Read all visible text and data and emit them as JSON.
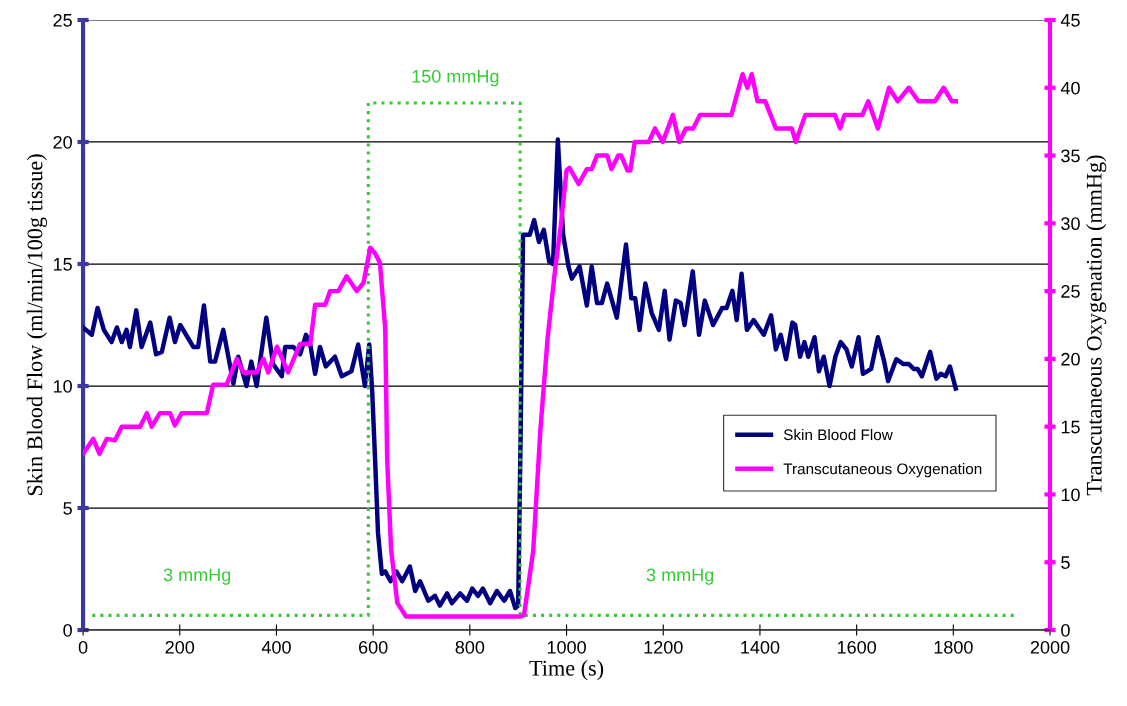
{
  "chart_data": {
    "type": "line",
    "xlabel": "Time (s)",
    "ylabel": "Skin Blood Flow (ml/min/100g tissue)",
    "y2label": "Transcutaneous Oxygenation (mmHg)",
    "xlim": [
      0,
      2000
    ],
    "xticks": [
      0,
      200,
      400,
      600,
      800,
      1000,
      1200,
      1400,
      1600,
      1800,
      2000
    ],
    "ylim": [
      0,
      25
    ],
    "yticks": [
      0,
      5,
      10,
      15,
      20,
      25
    ],
    "y2lim": [
      0,
      45
    ],
    "y2ticks": [
      0,
      5,
      10,
      15,
      20,
      25,
      30,
      35,
      40,
      45
    ],
    "grid": "y",
    "legend": "center right",
    "annotations": [
      {
        "text": "150 mmHg",
        "x": 770,
        "y": 21.6
      },
      {
        "text": "3 mmHg",
        "x": 236,
        "y": 0.6
      },
      {
        "text": "3 mmHg",
        "x": 1235,
        "y": 0.6
      }
    ],
    "series": [
      {
        "name": "Skin Blood Flow",
        "color": "#000080",
        "axis": "y",
        "line_style": "solid",
        "x": [
          0,
          18,
          30,
          43,
          59,
          70,
          80,
          90,
          97,
          110,
          121,
          139,
          151,
          163,
          179,
          190,
          201,
          228,
          238,
          250,
          263,
          273,
          290,
          311,
          321,
          338,
          348,
          359,
          379,
          393,
          411,
          418,
          435,
          449,
          461,
          470,
          480,
          490,
          502,
          521,
          535,
          555,
          569,
          583,
          592,
          598,
          604,
          610,
          618,
          625,
          636,
          648,
          660,
          676,
          687,
          697,
          714,
          728,
          738,
          753,
          763,
          780,
          794,
          805,
          817,
          827,
          842,
          856,
          871,
          883,
          894,
          900,
          905,
          910,
          924,
          933,
          943,
          953,
          964,
          972,
          982,
          993,
          1004,
          1011,
          1027,
          1042,
          1052,
          1063,
          1073,
          1084,
          1104,
          1123,
          1134,
          1142,
          1151,
          1163,
          1176,
          1191,
          1203,
          1213,
          1226,
          1236,
          1244,
          1261,
          1274,
          1286,
          1303,
          1322,
          1331,
          1343,
          1352,
          1362,
          1373,
          1387,
          1408,
          1423,
          1433,
          1443,
          1454,
          1467,
          1473,
          1483,
          1492,
          1500,
          1513,
          1522,
          1532,
          1544,
          1556,
          1567,
          1579,
          1590,
          1604,
          1613,
          1630,
          1644,
          1657,
          1665,
          1682,
          1697,
          1708,
          1718,
          1726,
          1735,
          1752,
          1765,
          1774,
          1784,
          1793,
          1805
        ],
        "values": [
          12.4,
          12.1,
          13.2,
          12.3,
          11.8,
          12.4,
          11.8,
          12.3,
          11.6,
          13.1,
          11.6,
          12.6,
          11.3,
          11.4,
          12.8,
          11.8,
          12.5,
          11.6,
          11.6,
          13.3,
          11.0,
          11.0,
          12.3,
          10.1,
          11.2,
          10.0,
          11.0,
          10.0,
          12.8,
          10.9,
          10.4,
          11.6,
          11.6,
          11.3,
          12.1,
          11.7,
          10.5,
          11.6,
          10.8,
          11.2,
          10.4,
          10.6,
          11.7,
          10.0,
          11.7,
          9.8,
          7.0,
          4.0,
          2.3,
          2.4,
          2.0,
          2.4,
          2.0,
          2.6,
          1.6,
          2.0,
          1.2,
          1.4,
          1.0,
          1.5,
          1.1,
          1.5,
          1.2,
          1.7,
          1.4,
          1.7,
          1.1,
          1.6,
          1.2,
          1.6,
          0.9,
          1.0,
          8.0,
          16.2,
          16.2,
          16.8,
          15.9,
          16.4,
          15.1,
          15.0,
          20.1,
          16.2,
          14.9,
          14.4,
          14.9,
          13.3,
          14.9,
          13.4,
          13.4,
          14.2,
          12.8,
          15.8,
          13.6,
          13.6,
          12.3,
          14.2,
          13.0,
          12.3,
          13.9,
          11.9,
          13.5,
          13.4,
          12.5,
          14.7,
          12.1,
          13.5,
          12.5,
          13.2,
          13.2,
          13.9,
          12.7,
          14.6,
          12.3,
          12.7,
          12.1,
          12.9,
          11.5,
          12.1,
          11.1,
          12.6,
          12.5,
          11.2,
          11.8,
          11.2,
          12.0,
          10.6,
          11.2,
          10.0,
          11.2,
          11.8,
          11.5,
          10.8,
          12.0,
          10.5,
          10.7,
          12.0,
          11.0,
          10.2,
          11.1,
          10.9,
          10.9,
          10.7,
          10.7,
          10.4,
          11.4,
          10.3,
          10.5,
          10.4,
          10.8,
          9.9
        ]
      },
      {
        "name": "Transcutaneous Oxygenation",
        "color": "#ff00ff",
        "axis": "y2",
        "line_style": "solid",
        "x": [
          0,
          21,
          34,
          49,
          66,
          80,
          118,
          132,
          142,
          159,
          180,
          190,
          204,
          256,
          269,
          297,
          318,
          332,
          359,
          373,
          383,
          401,
          424,
          449,
          470,
          480,
          501,
          511,
          528,
          545,
          566,
          580,
          594,
          604,
          614,
          625,
          629,
          637,
          650,
          668,
          905,
          912,
          931,
          946,
          961,
          977,
          988,
          1000,
          1006,
          1025,
          1042,
          1052,
          1063,
          1084,
          1093,
          1107,
          1113,
          1126,
          1132,
          1141,
          1170,
          1183,
          1199,
          1220,
          1233,
          1247,
          1262,
          1276,
          1341,
          1364,
          1374,
          1383,
          1395,
          1411,
          1433,
          1466,
          1474,
          1494,
          1555,
          1566,
          1575,
          1612,
          1624,
          1644,
          1667,
          1685,
          1708,
          1728,
          1762,
          1780,
          1797,
          1805
        ],
        "values": [
          13.0,
          14.1,
          13.0,
          14.1,
          14.0,
          15.0,
          15.0,
          16.0,
          15.0,
          16.0,
          16.0,
          15.1,
          16.0,
          16.0,
          18.1,
          18.1,
          20.0,
          19.0,
          19.0,
          20.0,
          19.0,
          20.9,
          19.0,
          21.1,
          21.1,
          24.0,
          24.0,
          25.0,
          25.0,
          26.1,
          25.0,
          25.6,
          28.2,
          27.8,
          27.1,
          22.2,
          12.6,
          6.0,
          2.0,
          1.0,
          1.0,
          1.1,
          5.8,
          14.8,
          21.6,
          26.8,
          29.8,
          33.9,
          34.1,
          32.9,
          34.0,
          34.0,
          35.0,
          35.0,
          34.0,
          35.0,
          35.0,
          33.9,
          33.9,
          36.0,
          36.0,
          37.0,
          36.0,
          38.0,
          36.0,
          37.0,
          37.0,
          38.0,
          38.0,
          41.0,
          40.0,
          41.0,
          39.0,
          39.0,
          37.0,
          37.0,
          36.0,
          38.0,
          38.0,
          37.0,
          38.0,
          38.0,
          39.0,
          37.0,
          40.0,
          39.0,
          40.0,
          39.0,
          39.0,
          40.0,
          39.0,
          39.0
        ]
      },
      {
        "color": "#33cc33",
        "axis": "y",
        "line_style": "dotted",
        "x": [
          19,
          590,
          590,
          904,
          904,
          1932
        ],
        "values": [
          0.6,
          0.6,
          21.6,
          21.6,
          0.6,
          0.6
        ]
      }
    ]
  }
}
